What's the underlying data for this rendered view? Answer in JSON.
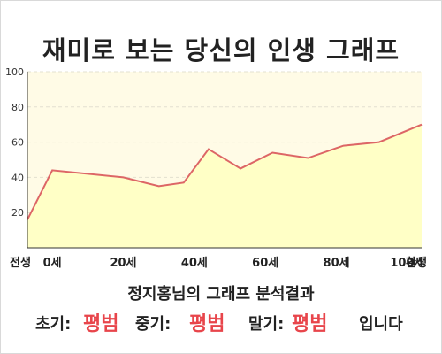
{
  "title": "재미로 보는 당신의 인생 그래프",
  "chart_data": {
    "type": "area",
    "title": "재미로 보는 당신의 인생 그래프",
    "xlabel": "",
    "ylabel": "",
    "xlim": [
      -7,
      104
    ],
    "ylim": [
      0,
      100
    ],
    "yticks": [
      20,
      40,
      60,
      80,
      100
    ],
    "x_tick_values": [
      -7,
      0,
      20,
      40,
      60,
      80,
      100,
      104
    ],
    "x_tick_labels": [
      "전생",
      "0세",
      "20세",
      "40세",
      "60세",
      "80세",
      "100세",
      "환생"
    ],
    "grid": true,
    "legend": "none",
    "series": [
      {
        "x": [
          -7,
          0,
          20,
          30,
          37,
          44,
          53,
          62,
          72,
          82,
          92,
          104
        ],
        "y": [
          16,
          44,
          40,
          35,
          37,
          56,
          45,
          54,
          51,
          58,
          60,
          70
        ]
      }
    ],
    "colors": {
      "line": "#dd6666",
      "fill": "#ffffc6",
      "plot_bg": "#fffbe6",
      "grid": "#e3e0d0"
    }
  },
  "result": {
    "heading": "정지홍님의 그래프 분석결과",
    "early_label": "초기:",
    "early_value": "평범",
    "mid_label": "중기:",
    "mid_value": "평범",
    "late_label": "말기:",
    "late_value": "평범",
    "suffix": "입니다"
  }
}
